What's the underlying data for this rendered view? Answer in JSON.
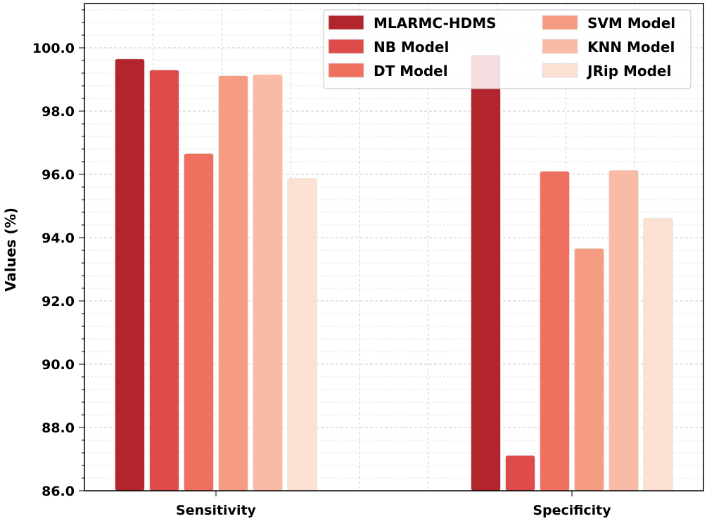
{
  "chart_data": {
    "type": "bar",
    "title": "",
    "xlabel": "",
    "ylabel": "Values (%)",
    "ylim": [
      86,
      101.4
    ],
    "yticks": [
      "86.0",
      "88.0",
      "90.0",
      "92.0",
      "94.0",
      "96.0",
      "98.0",
      "100.0"
    ],
    "grid": true,
    "legend_position": "top-right",
    "categories": [
      "Sensitivity",
      "Specificity"
    ],
    "series": [
      {
        "name": "MLARMC-HDMS",
        "color": "#b2252c",
        "values": [
          99.65,
          99.78
        ]
      },
      {
        "name": "NB Model",
        "color": "#de4b4b",
        "values": [
          99.3,
          87.12
        ]
      },
      {
        "name": "DT Model",
        "color": "#f07060",
        "values": [
          96.66,
          96.1
        ]
      },
      {
        "name": "SVM Model",
        "color": "#f59c82",
        "values": [
          99.12,
          93.66
        ]
      },
      {
        "name": "KNN Model",
        "color": "#f9bba6",
        "values": [
          99.15,
          96.13
        ]
      },
      {
        "name": "JRip Model",
        "color": "#fde0d4",
        "values": [
          95.88,
          94.62
        ]
      }
    ]
  }
}
